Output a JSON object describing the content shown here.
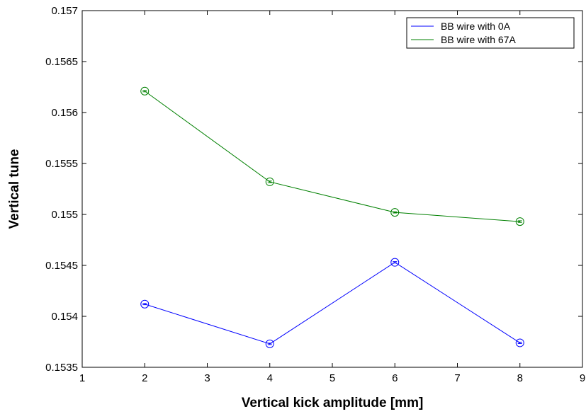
{
  "chart_data": {
    "type": "line",
    "title": "",
    "xlabel": "Vertical kick amplitude [mm]",
    "ylabel": "Vertical tune",
    "xlim": [
      1,
      9
    ],
    "ylim": [
      0.1535,
      0.157
    ],
    "x_ticks": [
      "1",
      "2",
      "3",
      "4",
      "5",
      "6",
      "7",
      "8",
      "9"
    ],
    "y_ticks": [
      "0.1535",
      "0.154",
      "0.1545",
      "0.155",
      "0.1555",
      "0.156",
      "0.1565",
      "0.157"
    ],
    "grid": false,
    "legend_position": "top-right",
    "x": [
      2,
      4,
      6,
      8
    ],
    "series": [
      {
        "name": "BB wire with 0A",
        "color": "#0000ff",
        "values": [
          0.15412,
          0.15373,
          0.15453,
          0.15374
        ],
        "errors": [
          6e-06,
          7e-06,
          7e-06,
          7e-06
        ]
      },
      {
        "name": "BB wire with 67A",
        "color": "#008000",
        "values": [
          0.15621,
          0.15532,
          0.15502,
          0.15493
        ],
        "errors": [
          7e-06,
          8e-06,
          6e-06,
          8e-06
        ]
      }
    ]
  }
}
